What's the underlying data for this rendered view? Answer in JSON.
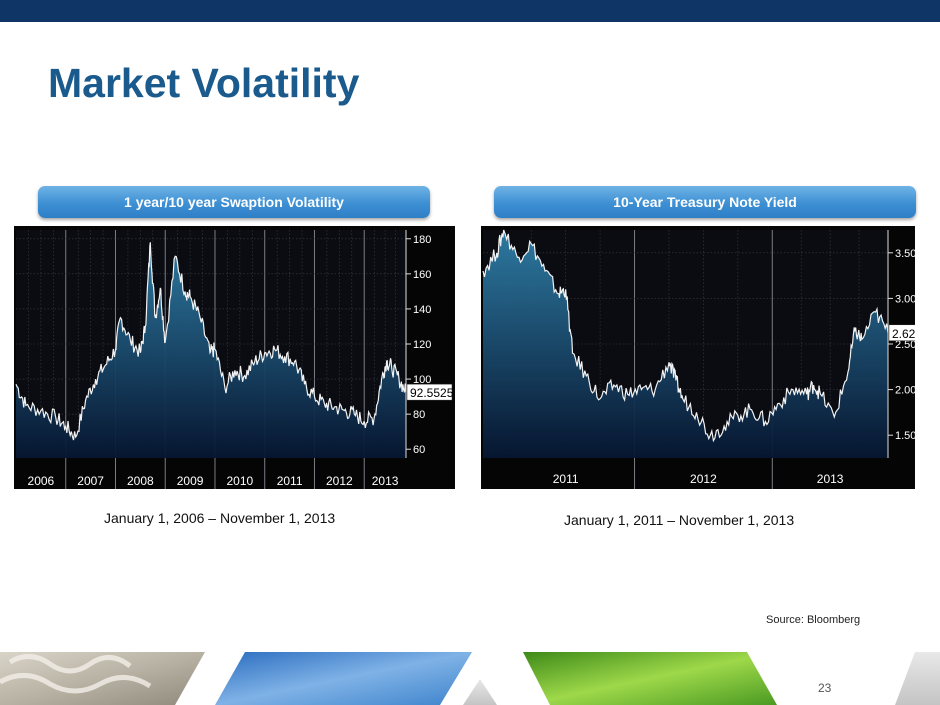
{
  "slide": {
    "title": "Market Volatility",
    "source": "Source: Bloomberg",
    "page_number": "23"
  },
  "colors": {
    "header_bar": "#0f3466",
    "title": "#1a5a8c",
    "pill": "#3d8fd3",
    "chart_bg": "#050505",
    "line": "#f2f2f2",
    "fill_top": "#2f7fa8",
    "fill_bottom": "#061631"
  },
  "chart_data": [
    {
      "type": "area",
      "title": "1 year/10 year Swaption Volatility",
      "range_label": "January 1, 2006 – November 1, 2013",
      "x_ticks": [
        "2006",
        "2007",
        "2008",
        "2009",
        "2010",
        "2011",
        "2012",
        "2013"
      ],
      "y_ticks": [
        "60",
        "80",
        "100",
        "120",
        "140",
        "160",
        "180"
      ],
      "ylim": [
        55,
        185
      ],
      "xlim": [
        2006.0,
        2013.84
      ],
      "last_value_label": "92.5525",
      "last_value": 92.55,
      "grid": true,
      "x": [
        2006.0,
        2006.2,
        2006.5,
        2006.8,
        2007.0,
        2007.2,
        2007.4,
        2007.6,
        2007.8,
        2008.0,
        2008.1,
        2008.3,
        2008.5,
        2008.6,
        2008.7,
        2008.8,
        2008.9,
        2009.0,
        2009.2,
        2009.4,
        2009.5,
        2009.7,
        2009.9,
        2010.0,
        2010.2,
        2010.4,
        2010.6,
        2010.8,
        2011.0,
        2011.2,
        2011.4,
        2011.6,
        2011.8,
        2012.0,
        2012.2,
        2012.4,
        2012.6,
        2012.8,
        2013.0,
        2013.2,
        2013.35,
        2013.45,
        2013.55,
        2013.7,
        2013.84
      ],
      "y": [
        97,
        85,
        82,
        78,
        73,
        67,
        88,
        100,
        108,
        117,
        135,
        122,
        115,
        130,
        178,
        135,
        152,
        121,
        170,
        150,
        147,
        135,
        115,
        117,
        95,
        105,
        102,
        110,
        115,
        117,
        113,
        110,
        97,
        90,
        86,
        84,
        82,
        80,
        76,
        78,
        100,
        110,
        107,
        100,
        92.55
      ]
    },
    {
      "type": "area",
      "title": "10-Year Treasury Note Yield",
      "range_label": "January 1, 2011 – November 1, 2013",
      "x_ticks": [
        "2011",
        "2012",
        "2013"
      ],
      "y_ticks": [
        "1.500",
        "2.000",
        "2.500",
        "3.000",
        "3.500"
      ],
      "ylim": [
        1.25,
        3.75
      ],
      "xlim": [
        2010.9,
        2013.84
      ],
      "last_value_label": "2.623",
      "last_value": 2.623,
      "grid": true,
      "x": [
        2010.9,
        2011.0,
        2011.05,
        2011.15,
        2011.25,
        2011.35,
        2011.45,
        2011.5,
        2011.55,
        2011.65,
        2011.75,
        2011.85,
        2011.95,
        2012.05,
        2012.15,
        2012.25,
        2012.3,
        2012.35,
        2012.45,
        2012.55,
        2012.65,
        2012.75,
        2012.85,
        2012.95,
        2013.05,
        2013.15,
        2013.25,
        2013.3,
        2013.35,
        2013.45,
        2013.55,
        2013.6,
        2013.65,
        2013.75,
        2013.84
      ],
      "y": [
        3.3,
        3.5,
        3.75,
        3.45,
        3.6,
        3.3,
        3.05,
        3.1,
        2.4,
        2.15,
        1.9,
        2.05,
        1.95,
        2.0,
        2.0,
        2.3,
        2.1,
        1.9,
        1.75,
        1.5,
        1.6,
        1.72,
        1.78,
        1.65,
        1.85,
        2.0,
        1.95,
        2.05,
        1.95,
        1.7,
        2.2,
        2.65,
        2.55,
        2.85,
        2.623
      ]
    }
  ]
}
